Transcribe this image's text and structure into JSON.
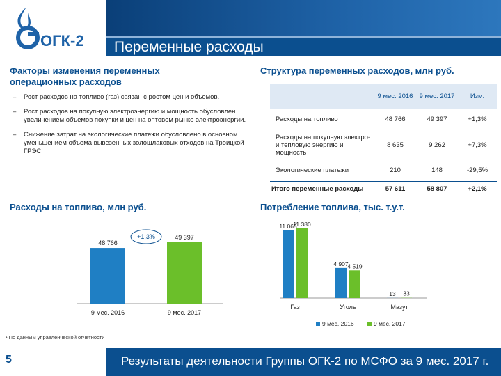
{
  "header": {
    "logo_text": "ОГК-2",
    "title": "Переменные расходы"
  },
  "factors": {
    "title": "Факторы изменения переменных операционных расходов",
    "bullets": [
      "Рост расходов на топливо (газ) связан с ростом цен и объемов.",
      "Рост расходов на покупную электроэнергию и мощность обусловлен увеличением объемов покупки и цен на оптовом рынке электроэнергии.",
      "Снижение затрат на экологические платежи обусловлено в основном уменьшением объема вывезенных золошлаковых отходов на Троицкой ГРЭС."
    ],
    "dash": "–"
  },
  "structure": {
    "title": "Структура переменных расходов, млн руб.",
    "columns": [
      "",
      "9 мес. 2016",
      "9 мес. 2017",
      "Изм."
    ],
    "rows": [
      {
        "label": "Расходы на топливо",
        "v2016": "48 766",
        "v2017": "49 397",
        "change": "+1,3%"
      },
      {
        "label": "Расходы на покупную электро- и тепловую энергию и мощность",
        "v2016": "8 635",
        "v2017": "9 262",
        "change": "+7,3%"
      },
      {
        "label": "Экологические платежи",
        "v2016": "210",
        "v2017": "148",
        "change": "-29,5%"
      }
    ],
    "total": {
      "label": "Итого переменные расходы",
      "v2016": "57 611",
      "v2017": "58 807",
      "change": "+2,1%"
    }
  },
  "fuel_costs": {
    "title": "Расходы на топливо, млн руб.",
    "change_label": "+1,3%"
  },
  "fuel_consumption": {
    "title": "Потребление топлива, тыс. т.у.т."
  },
  "chart_data": [
    {
      "type": "bar",
      "title": "Расходы на топливо, млн руб.",
      "categories": [
        "9 мес. 2016",
        "9 мес. 2017"
      ],
      "values": [
        48766,
        49397
      ],
      "value_labels": [
        "48 766",
        "49 397"
      ],
      "annotation": "+1,3%",
      "colors": [
        "#1f7fc4",
        "#6bbf2a"
      ]
    },
    {
      "type": "bar",
      "title": "Потребление топлива, тыс. т.у.т.",
      "categories": [
        "Газ",
        "Уголь",
        "Мазут"
      ],
      "series": [
        {
          "name": "9 мес. 2016",
          "values": [
            11065,
            4907,
            13
          ],
          "labels": [
            "11 065",
            "4 907",
            "13"
          ],
          "color": "#1f7fc4"
        },
        {
          "name": "9 мес. 2017",
          "values": [
            11380,
            4519,
            33
          ],
          "labels": [
            "11 380",
            "4 519",
            "33"
          ],
          "color": "#6bbf2a"
        }
      ],
      "legend_position": "bottom"
    }
  ],
  "footnote": {
    "marker": "¹",
    "text": "По данным управленческой отчетности"
  },
  "footer": {
    "page_number": "5",
    "text": "Результаты деятельности Группы ОГК-2 по МСФО за 9 мес. 2017 г."
  },
  "colors": {
    "brand_blue": "#0b4f8f",
    "bar_2016": "#1f7fc4",
    "bar_2017": "#6bbf2a"
  }
}
